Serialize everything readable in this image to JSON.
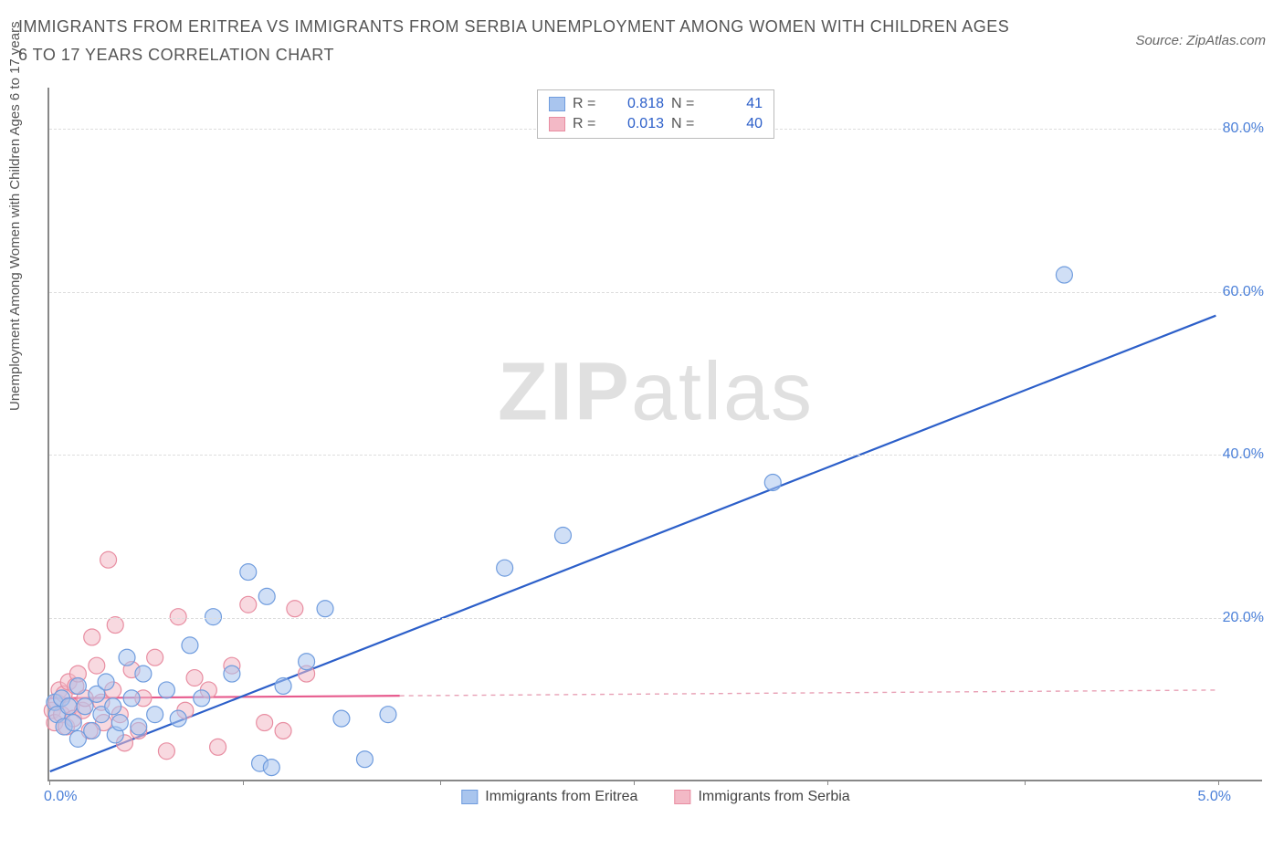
{
  "title": "IMMIGRANTS FROM ERITREA VS IMMIGRANTS FROM SERBIA UNEMPLOYMENT AMONG WOMEN WITH CHILDREN AGES 6 TO 17 YEARS CORRELATION CHART",
  "source": "Source: ZipAtlas.com",
  "ylabel": "Unemployment Among Women with Children Ages 6 to 17 years",
  "watermark_bold": "ZIP",
  "watermark_light": "atlas",
  "chart": {
    "type": "scatter",
    "xlim": [
      0.0,
      5.0
    ],
    "ylim": [
      0.0,
      85.0
    ],
    "x_ticks_labels": {
      "left": "0.0%",
      "right": "5.0%"
    },
    "x_tick_marks": [
      0.0,
      0.83,
      1.67,
      2.5,
      3.33,
      4.17,
      5.0
    ],
    "y_ticks": [
      20.0,
      40.0,
      60.0,
      80.0
    ],
    "y_tick_labels": [
      "20.0%",
      "40.0%",
      "60.0%",
      "80.0%"
    ],
    "grid_color": "#dddddd",
    "axis_color": "#888888",
    "label_fontsize": 15,
    "tick_color": "#4a7fd8",
    "background_color": "#ffffff",
    "series": [
      {
        "name": "Immigrants from Eritrea",
        "color_fill": "#a9c5ee",
        "color_stroke": "#6f9cde",
        "fill_opacity": 0.55,
        "marker_radius": 9,
        "R": "0.818",
        "N": "41",
        "trend": {
          "x1": 0.0,
          "y1": 1.0,
          "x2": 5.0,
          "y2": 57.0,
          "color": "#2c5fc9",
          "width": 2.2
        },
        "points": [
          [
            0.02,
            9.5
          ],
          [
            0.03,
            8.0
          ],
          [
            0.05,
            10.0
          ],
          [
            0.06,
            6.5
          ],
          [
            0.08,
            9.0
          ],
          [
            0.1,
            7.0
          ],
          [
            0.12,
            11.5
          ],
          [
            0.12,
            5.0
          ],
          [
            0.15,
            9.0
          ],
          [
            0.18,
            6.0
          ],
          [
            0.2,
            10.5
          ],
          [
            0.22,
            8.0
          ],
          [
            0.24,
            12.0
          ],
          [
            0.27,
            9.0
          ],
          [
            0.28,
            5.5
          ],
          [
            0.3,
            7.0
          ],
          [
            0.33,
            15.0
          ],
          [
            0.35,
            10.0
          ],
          [
            0.38,
            6.5
          ],
          [
            0.4,
            13.0
          ],
          [
            0.45,
            8.0
          ],
          [
            0.5,
            11.0
          ],
          [
            0.55,
            7.5
          ],
          [
            0.6,
            16.5
          ],
          [
            0.65,
            10.0
          ],
          [
            0.7,
            20.0
          ],
          [
            0.78,
            13.0
          ],
          [
            0.85,
            25.5
          ],
          [
            0.9,
            2.0
          ],
          [
            0.93,
            22.5
          ],
          [
            0.95,
            1.5
          ],
          [
            1.0,
            11.5
          ],
          [
            1.1,
            14.5
          ],
          [
            1.18,
            21.0
          ],
          [
            1.25,
            7.5
          ],
          [
            1.35,
            2.5
          ],
          [
            1.45,
            8.0
          ],
          [
            1.95,
            26.0
          ],
          [
            2.2,
            30.0
          ],
          [
            3.1,
            36.5
          ],
          [
            4.35,
            62.0
          ]
        ]
      },
      {
        "name": "Immigrants from Serbia",
        "color_fill": "#f3b9c6",
        "color_stroke": "#e88da1",
        "fill_opacity": 0.55,
        "marker_radius": 9,
        "R": "0.013",
        "N": "40",
        "trend_solid": {
          "x1": 0.0,
          "y1": 10.0,
          "x2": 1.5,
          "y2": 10.3,
          "color": "#e75a8d",
          "width": 2.2
        },
        "trend_dashed": {
          "x1": 1.5,
          "y1": 10.3,
          "x2": 5.0,
          "y2": 11.0,
          "color": "#e8a0b5",
          "width": 1.4
        },
        "points": [
          [
            0.01,
            8.5
          ],
          [
            0.02,
            7.0
          ],
          [
            0.03,
            9.5
          ],
          [
            0.04,
            11.0
          ],
          [
            0.05,
            8.0
          ],
          [
            0.06,
            10.5
          ],
          [
            0.07,
            6.5
          ],
          [
            0.08,
            12.0
          ],
          [
            0.09,
            9.0
          ],
          [
            0.1,
            7.5
          ],
          [
            0.11,
            11.5
          ],
          [
            0.12,
            13.0
          ],
          [
            0.14,
            8.5
          ],
          [
            0.15,
            10.0
          ],
          [
            0.17,
            6.0
          ],
          [
            0.18,
            17.5
          ],
          [
            0.2,
            14.0
          ],
          [
            0.22,
            9.5
          ],
          [
            0.23,
            7.0
          ],
          [
            0.25,
            27.0
          ],
          [
            0.27,
            11.0
          ],
          [
            0.28,
            19.0
          ],
          [
            0.3,
            8.0
          ],
          [
            0.32,
            4.5
          ],
          [
            0.35,
            13.5
          ],
          [
            0.38,
            6.0
          ],
          [
            0.4,
            10.0
          ],
          [
            0.45,
            15.0
          ],
          [
            0.5,
            3.5
          ],
          [
            0.55,
            20.0
          ],
          [
            0.58,
            8.5
          ],
          [
            0.62,
            12.5
          ],
          [
            0.68,
            11.0
          ],
          [
            0.72,
            4.0
          ],
          [
            0.78,
            14.0
          ],
          [
            0.85,
            21.5
          ],
          [
            0.92,
            7.0
          ],
          [
            1.0,
            6.0
          ],
          [
            1.05,
            21.0
          ],
          [
            1.1,
            13.0
          ]
        ]
      }
    ]
  },
  "legend_top": {
    "r_label": "R =",
    "n_label": "N ="
  }
}
